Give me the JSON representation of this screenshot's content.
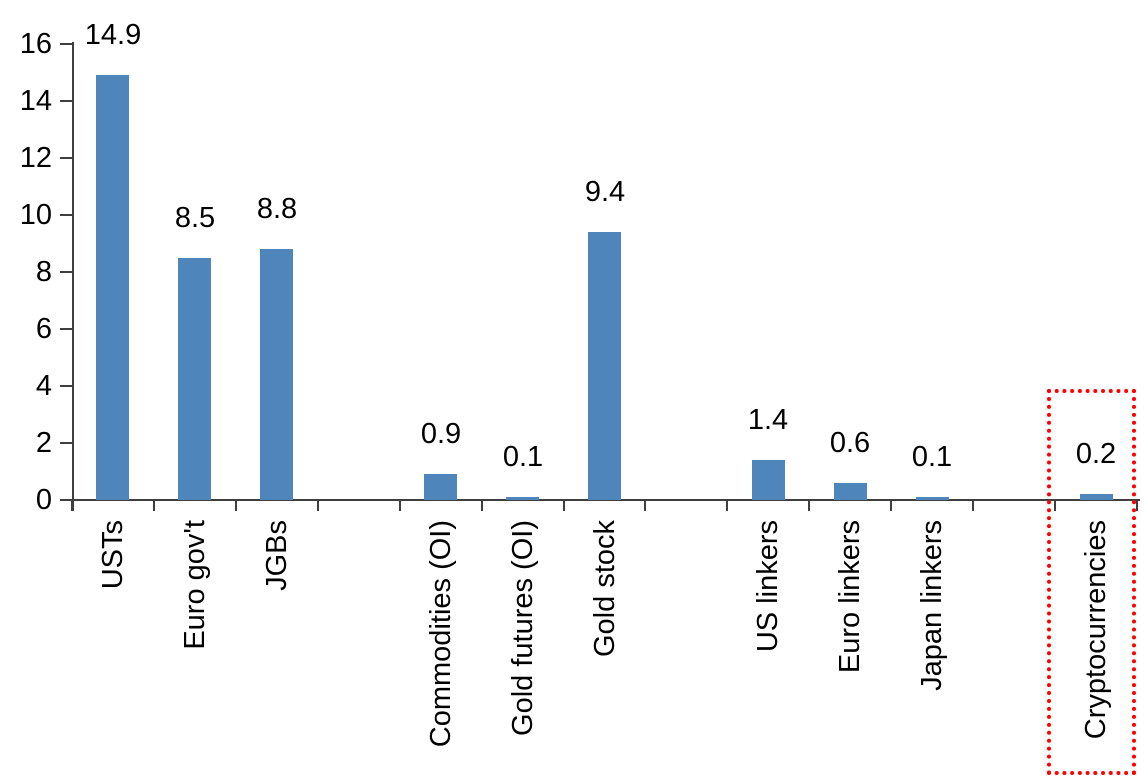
{
  "chart_data": {
    "type": "bar",
    "title": "",
    "xlabel": "",
    "ylabel": "",
    "categories": [
      "USTs",
      "Euro gov't",
      "JGBs",
      "Commodities (OI)",
      "Gold futures (OI)",
      "Gold stock",
      "US linkers",
      "Euro linkers",
      "Japan linkers",
      "Cryptocurrencies"
    ],
    "values": [
      14.9,
      8.5,
      8.8,
      0.9,
      0.1,
      9.4,
      1.4,
      0.6,
      0.1,
      0.2
    ],
    "data_labels": [
      "14.9",
      "8.5",
      "8.8",
      "0.9",
      "0.1",
      "9.4",
      "1.4",
      "0.6",
      "0.1",
      "0.2"
    ],
    "groups": [
      [
        0,
        1,
        2
      ],
      [
        3,
        4,
        5
      ],
      [
        6,
        7,
        8
      ],
      [
        9
      ]
    ],
    "ylim": [
      0,
      16
    ],
    "yticks": [
      0,
      2,
      4,
      6,
      8,
      10,
      12,
      14,
      16
    ],
    "grid": "off",
    "legend": "none",
    "bar_color": "#4e86bc",
    "axis_color": "#3f3f3f",
    "highlight": {
      "category": "Cryptocurrencies",
      "box_color": "#ff0000",
      "box_style": "dotted"
    }
  }
}
